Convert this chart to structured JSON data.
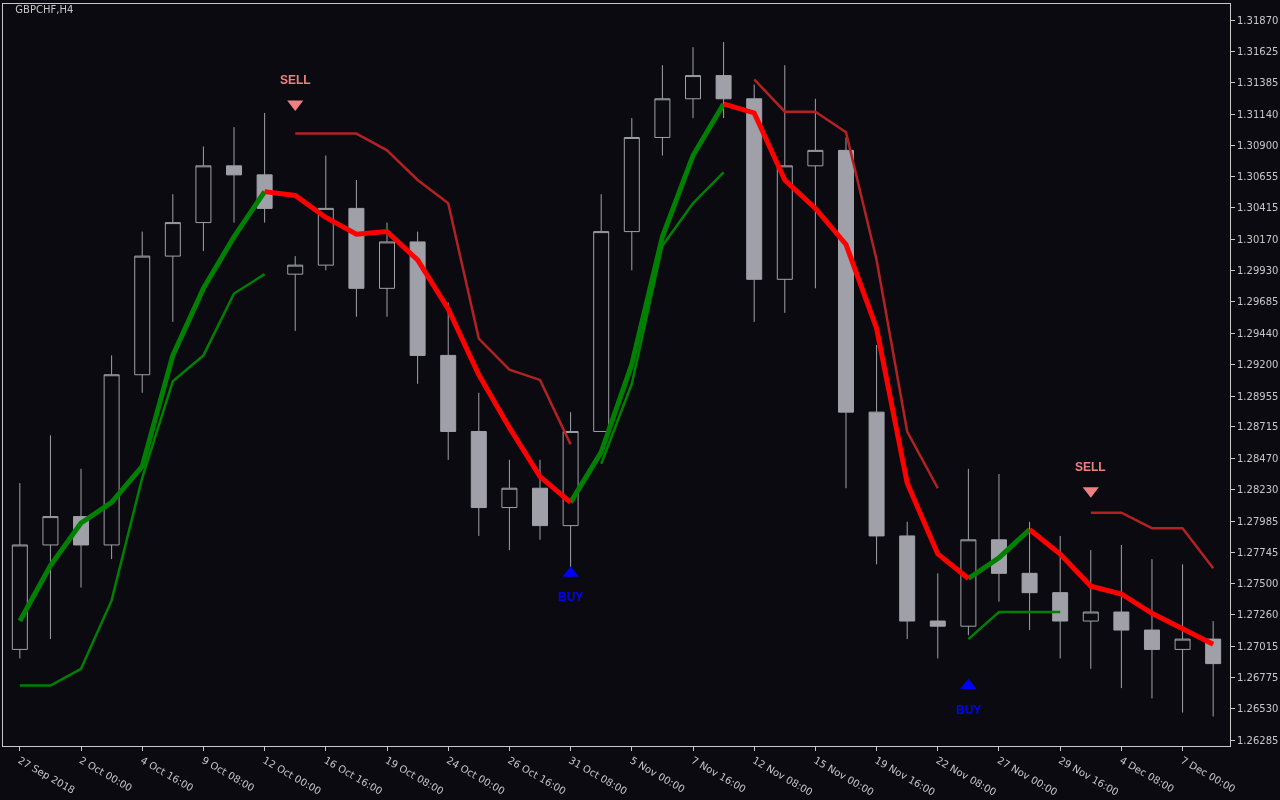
{
  "chart_data": {
    "type": "candlestick",
    "title": "GBPCHF,H4",
    "color": "#a0a0a8",
    "categories": [
      "27 Sep 2018",
      null,
      "2 Oct 00:00",
      null,
      "4 Oct 16:00",
      null,
      "9 Oct 08:00",
      null,
      "12 Oct 00:00",
      null,
      "16 Oct 16:00",
      null,
      "19 Oct 08:00",
      null,
      "24 Oct 00:00",
      null,
      "26 Oct 16:00",
      null,
      "31 Oct 08:00",
      null,
      "5 Nov 00:00",
      null,
      "7 Nov 16:00",
      null,
      "12 Nov 08:00",
      null,
      "15 Nov 00:00",
      null,
      "19 Nov 16:00",
      null,
      "22 Nov 08:00",
      null,
      "27 Nov 00:00",
      null,
      "29 Nov 16:00",
      null,
      "4 Dec 08:00",
      null,
      "7 Dec 00:00",
      null
    ],
    "ohlc": [
      [
        1.2699,
        1.2828,
        1.2692,
        1.278
      ],
      [
        1.278,
        1.2865,
        1.2707,
        1.2802
      ],
      [
        1.2802,
        1.2839,
        1.2747,
        1.278
      ],
      [
        1.278,
        1.2927,
        1.2769,
        1.2912
      ],
      [
        1.2912,
        1.3023,
        1.2898,
        1.3004
      ],
      [
        1.3004,
        1.3052,
        1.2953,
        1.303
      ],
      [
        1.303,
        1.3089,
        1.3008,
        1.3074
      ],
      [
        1.3074,
        1.3104,
        1.303,
        1.3067
      ],
      [
        1.3067,
        1.3115,
        1.303,
        1.3041
      ],
      [
        1.299,
        1.3004,
        1.2946,
        1.2997
      ],
      [
        1.2997,
        1.3082,
        1.2993,
        1.3041
      ],
      [
        1.3041,
        1.3063,
        1.2957,
        1.2979
      ],
      [
        1.2979,
        1.303,
        1.2957,
        1.3015
      ],
      [
        1.3015,
        1.3023,
        1.2905,
        1.2927
      ],
      [
        1.2927,
        1.2968,
        1.2846,
        1.2868
      ],
      [
        1.2868,
        1.2898,
        1.2787,
        1.2809
      ],
      [
        1.2809,
        1.2846,
        1.2776,
        1.2824
      ],
      [
        1.2824,
        1.2846,
        1.2784,
        1.2795
      ],
      [
        1.2795,
        1.2883,
        1.2762,
        1.2868
      ],
      [
        1.2868,
        1.3052,
        1.2868,
        1.3023
      ],
      [
        1.3023,
        1.3111,
        1.2993,
        1.3096
      ],
      [
        1.3096,
        1.3152,
        1.3082,
        1.3126
      ],
      [
        1.3126,
        1.3166,
        1.3111,
        1.3144
      ],
      [
        1.3144,
        1.317,
        1.3111,
        1.3126
      ],
      [
        1.3126,
        1.3137,
        1.2953,
        1.2986
      ],
      [
        1.2986,
        1.3152,
        1.296,
        1.3074
      ],
      [
        1.3074,
        1.3126,
        1.2979,
        1.3086
      ],
      [
        1.3086,
        1.3096,
        1.2824,
        1.2883
      ],
      [
        1.2883,
        1.2935,
        1.2765,
        1.2787
      ],
      [
        1.2787,
        1.2798,
        1.2707,
        1.2721
      ],
      [
        1.2721,
        1.2758,
        1.2692,
        1.2717
      ],
      [
        1.2717,
        1.2839,
        1.271,
        1.2784
      ],
      [
        1.2784,
        1.2835,
        1.2736,
        1.2758
      ],
      [
        1.2758,
        1.2798,
        1.2714,
        1.2743
      ],
      [
        1.2743,
        1.2787,
        1.2692,
        1.2721
      ],
      [
        1.2721,
        1.2776,
        1.2684,
        1.2728
      ],
      [
        1.2728,
        1.278,
        1.2669,
        1.2714
      ],
      [
        1.2714,
        1.2769,
        1.2661,
        1.2699
      ],
      [
        1.2699,
        1.2765,
        1.265,
        1.2707
      ],
      [
        1.2707,
        1.2721,
        1.2647,
        1.2688
      ]
    ],
    "series": [
      {
        "type": "line",
        "color": "#008000",
        "values": [
          1.2721,
          1.2764,
          1.2797,
          1.2813,
          1.2841,
          1.2927,
          1.2979,
          1.3019,
          1.3054,
          null,
          null,
          null,
          null,
          null,
          null,
          null,
          null,
          null,
          1.2813,
          1.2852,
          1.292,
          1.3019,
          1.3082,
          1.3122,
          null,
          null,
          null,
          null,
          null,
          null,
          null,
          1.2754,
          1.277,
          1.2792,
          null,
          null,
          null,
          null,
          null,
          null
        ]
      },
      {
        "type": "line",
        "color": "#ff0000",
        "values": [
          null,
          null,
          null,
          null,
          null,
          null,
          null,
          null,
          1.3054,
          1.3051,
          1.3034,
          1.3021,
          1.3023,
          1.3001,
          1.2963,
          1.2912,
          1.2871,
          1.2833,
          1.2813,
          null,
          null,
          null,
          null,
          1.3122,
          1.3115,
          1.3063,
          1.3041,
          1.3013,
          1.2948,
          1.2828,
          1.2773,
          1.2754,
          null,
          1.2792,
          1.2773,
          1.2748,
          1.2742,
          1.2727,
          1.2715,
          1.2703
        ]
      },
      {
        "type": "line",
        "color": "#008000",
        "values": [
          1.2671,
          1.2671,
          1.2684,
          1.2737,
          1.2832,
          1.2907,
          1.2927,
          1.2975,
          1.299,
          null,
          null,
          null,
          null,
          null,
          null,
          null,
          null,
          null,
          null,
          1.2843,
          1.2905,
          1.3012,
          1.3045,
          1.3069,
          null,
          null,
          null,
          null,
          null,
          null,
          null,
          1.2707,
          1.2728,
          1.2728,
          1.2728,
          null,
          null,
          null,
          null,
          null
        ]
      },
      {
        "type": "line",
        "color": "#b22222",
        "values": [
          null,
          null,
          null,
          null,
          null,
          null,
          null,
          null,
          null,
          1.3099,
          1.3099,
          1.3099,
          1.3086,
          1.3063,
          1.3045,
          1.294,
          1.2916,
          1.2908,
          1.2858,
          null,
          null,
          null,
          null,
          null,
          1.3141,
          1.3116,
          1.3116,
          1.31,
          1.3001,
          1.2868,
          1.2824,
          null,
          null,
          null,
          null,
          1.2805,
          1.2805,
          1.2793,
          1.2793,
          1.2762
        ]
      },
      {
        "type": "scatter",
        "name": "SELL",
        "color": "#f08080",
        "marker": "triangle",
        "values": [
          null,
          null,
          null,
          null,
          null,
          null,
          null,
          null,
          null,
          1.3122,
          null,
          null,
          null,
          null,
          null,
          null,
          null,
          null,
          null,
          null,
          null,
          null,
          null,
          null,
          null,
          null,
          null,
          null,
          null,
          null,
          null,
          null,
          null,
          null,
          null,
          1.2822,
          null,
          null,
          null,
          null
        ]
      },
      {
        "type": "scatter",
        "name": "BUY",
        "color": "#0000ff",
        "marker": "triangle",
        "values": [
          null,
          null,
          null,
          null,
          null,
          null,
          null,
          null,
          null,
          null,
          null,
          null,
          null,
          null,
          null,
          null,
          null,
          null,
          1.2758,
          null,
          null,
          null,
          null,
          null,
          null,
          null,
          null,
          null,
          null,
          null,
          null,
          1.2671,
          null,
          null,
          null,
          null,
          null,
          null,
          null,
          null
        ]
      }
    ],
    "ylim": [
      1.26241,
      1.31995
    ],
    "yticks": [
      {
        "value": 1.3187,
        "label": "1.31870"
      },
      1.31625,
      1.31385,
      {
        "value": 1.3114,
        "label": "1.31140"
      },
      {
        "value": 1.309,
        "label": "1.30900"
      },
      1.30655,
      1.30415,
      {
        "value": 1.3017,
        "label": "1.30170"
      },
      {
        "value": 1.2993,
        "label": "1.29930"
      },
      1.29685,
      {
        "value": 1.2944,
        "label": "1.29440"
      },
      {
        "value": 1.292,
        "label": "1.29200"
      },
      1.28955,
      1.28715,
      {
        "value": 1.2847,
        "label": "1.28470"
      },
      {
        "value": 1.2823,
        "label": "1.28230"
      },
      1.27985,
      1.27745,
      {
        "value": 1.275,
        "label": "1.27500"
      },
      {
        "value": 1.2726,
        "label": "1.27260"
      },
      1.27015,
      1.26775,
      {
        "value": 1.2653,
        "label": "1.26530"
      },
      1.26285
    ],
    "grid": false,
    "legend": false
  }
}
